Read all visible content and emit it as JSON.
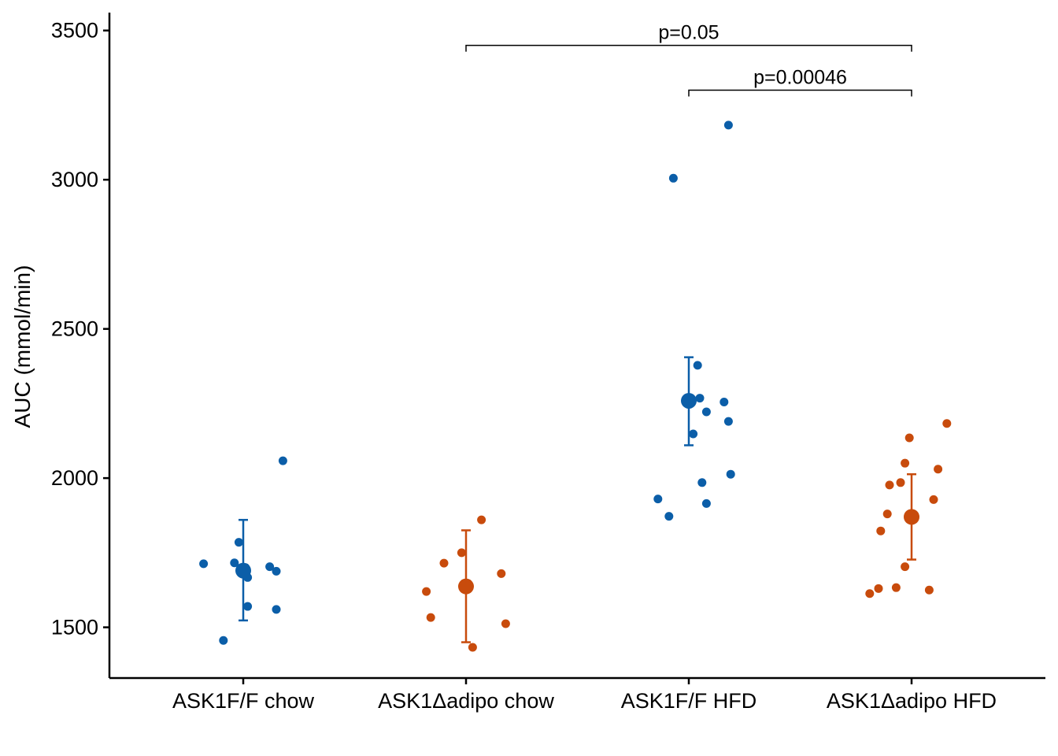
{
  "chart_data": {
    "type": "scatter",
    "title": "",
    "xlabel": "",
    "ylabel": "AUC (mmol/min)",
    "ylim": [
      1330,
      3560
    ],
    "yticks": [
      1500,
      2000,
      2500,
      3000,
      3500
    ],
    "categories": [
      "ASK1F/F chow",
      "ASK1Δadipo chow",
      "ASK1F/F HFD",
      "ASK1Δadipo HFD"
    ],
    "colors": {
      "blue": "#0b5ea8",
      "orange": "#c84b0c",
      "axis": "#000000"
    },
    "groups": [
      {
        "name": "ASK1F/F chow",
        "color": "blue",
        "mean": 1690,
        "lower": 1523,
        "upper": 1860,
        "points": [
          [
            -0.18,
            1713
          ],
          [
            -0.04,
            1716
          ],
          [
            -0.02,
            1785
          ],
          [
            0.01,
            1700
          ],
          [
            0.02,
            1570
          ],
          [
            0.02,
            1667
          ],
          [
            0.12,
            1703
          ],
          [
            0.15,
            1688
          ],
          [
            0.15,
            1560
          ],
          [
            0.18,
            2058
          ],
          [
            -0.09,
            1456
          ]
        ]
      },
      {
        "name": "ASK1Δadipo chow",
        "color": "orange",
        "mean": 1637,
        "lower": 1450,
        "upper": 1825,
        "points": [
          [
            -0.18,
            1620
          ],
          [
            -0.16,
            1533
          ],
          [
            -0.1,
            1715
          ],
          [
            -0.02,
            1750
          ],
          [
            0.03,
            1433
          ],
          [
            0.07,
            1860
          ],
          [
            0.16,
            1680
          ],
          [
            0.18,
            1512
          ]
        ]
      },
      {
        "name": "ASK1F/F HFD",
        "color": "blue",
        "mean": 2259,
        "lower": 2110,
        "upper": 2405,
        "points": [
          [
            -0.14,
            1930
          ],
          [
            -0.09,
            1872
          ],
          [
            -0.07,
            3005
          ],
          [
            0.02,
            2148
          ],
          [
            0.04,
            2378
          ],
          [
            0.05,
            2268
          ],
          [
            0.06,
            1985
          ],
          [
            0.08,
            2222
          ],
          [
            0.08,
            1915
          ],
          [
            0.16,
            2255
          ],
          [
            0.18,
            2190
          ],
          [
            0.19,
            2013
          ],
          [
            0.18,
            3183
          ]
        ]
      },
      {
        "name": "ASK1Δadipo HFD",
        "color": "orange",
        "mean": 1870,
        "lower": 1727,
        "upper": 2013,
        "points": [
          [
            -0.19,
            1613
          ],
          [
            -0.15,
            1630
          ],
          [
            -0.14,
            1823
          ],
          [
            -0.11,
            1880
          ],
          [
            -0.1,
            1977
          ],
          [
            -0.07,
            1633
          ],
          [
            -0.05,
            1985
          ],
          [
            -0.03,
            2050
          ],
          [
            -0.03,
            1703
          ],
          [
            -0.01,
            2135
          ],
          [
            0.08,
            1625
          ],
          [
            0.1,
            1928
          ],
          [
            0.12,
            2030
          ],
          [
            0.16,
            2183
          ]
        ]
      }
    ],
    "comparisons": [
      {
        "from": 1,
        "to": 3,
        "label": "p=0.05",
        "y": 3450
      },
      {
        "from": 2,
        "to": 3,
        "label": "p=0.00046",
        "y": 3300
      }
    ]
  }
}
